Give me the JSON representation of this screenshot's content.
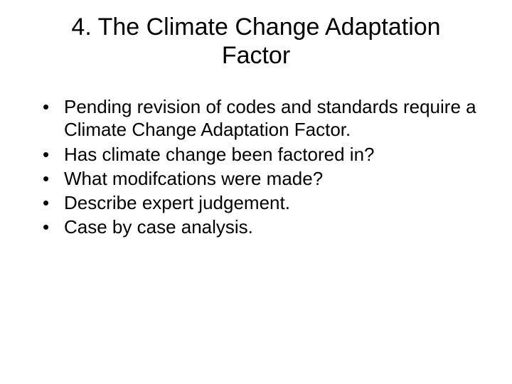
{
  "slide": {
    "title": "4. The Climate Change Adaptation Factor",
    "bullets": [
      "Pending revision of codes and standards require a Climate Change Adaptation Factor.",
      "Has climate change been factored in?",
      "What modifcations were made?",
      "Describe expert judgement.",
      "Case by case analysis."
    ],
    "styling": {
      "background_color": "#ffffff",
      "text_color": "#000000",
      "title_fontsize": 34,
      "title_fontweight": 400,
      "title_align": "center",
      "body_fontsize": 26,
      "font_family": "Arial",
      "bullet_marker": "•",
      "slide_width": 720,
      "slide_height": 540
    }
  }
}
